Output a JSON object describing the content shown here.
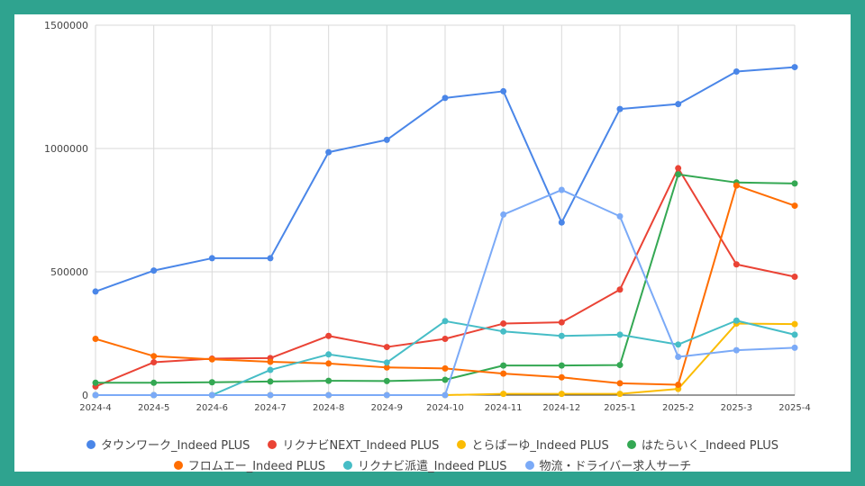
{
  "chart_data": {
    "type": "line",
    "title": "",
    "xlabel": "",
    "ylabel": "",
    "categories": [
      "2024-4",
      "2024-5",
      "2024-6",
      "2024-7",
      "2024-8",
      "2024-9",
      "2024-10",
      "2024-11",
      "2024-12",
      "2025-1",
      "2025-2",
      "2025-3",
      "2025-4"
    ],
    "ylim": [
      0,
      1500000
    ],
    "yticks": [
      "0",
      "500000",
      "1000000",
      "1500000"
    ],
    "grid": true,
    "legend_position": "bottom",
    "series": [
      {
        "name": "タウンワーク_Indeed PLUS",
        "color": "#4a86e8",
        "values": [
          420000,
          505000,
          555000,
          555000,
          985000,
          1035000,
          1205000,
          1232000,
          700000,
          1160000,
          1180000,
          1312000,
          1330000
        ]
      },
      {
        "name": "リクナビNEXT_Indeed PLUS",
        "color": "#ea4335",
        "values": [
          35000,
          133000,
          148000,
          150000,
          240000,
          195000,
          228000,
          290000,
          295000,
          428000,
          920000,
          530000,
          480000
        ]
      },
      {
        "name": "とらばーゆ_Indeed PLUS",
        "color": "#fbbc04",
        "values": [
          0,
          0,
          0,
          0,
          0,
          0,
          0,
          5000,
          5000,
          5000,
          25000,
          290000,
          288000
        ]
      },
      {
        "name": "はたらいく_Indeed PLUS",
        "color": "#34a853",
        "values": [
          50000,
          50000,
          52000,
          55000,
          58000,
          57000,
          62000,
          120000,
          120000,
          122000,
          895000,
          862000,
          858000
        ]
      },
      {
        "name": "フロムエー_Indeed PLUS",
        "color": "#ff6d01",
        "values": [
          228000,
          158000,
          145000,
          135000,
          128000,
          112000,
          108000,
          87000,
          72000,
          48000,
          42000,
          850000,
          768000
        ]
      },
      {
        "name": "リクナビ派遣_Indeed PLUS",
        "color": "#46bdc6",
        "values": [
          0,
          0,
          0,
          102000,
          165000,
          132000,
          300000,
          258000,
          240000,
          245000,
          205000,
          302000,
          245000
        ]
      },
      {
        "name": "物流・ドライバー求人サーチ",
        "color": "#7baaf7",
        "values": [
          0,
          0,
          0,
          0,
          0,
          0,
          0,
          732000,
          832000,
          725000,
          155000,
          182000,
          192000
        ]
      }
    ]
  }
}
